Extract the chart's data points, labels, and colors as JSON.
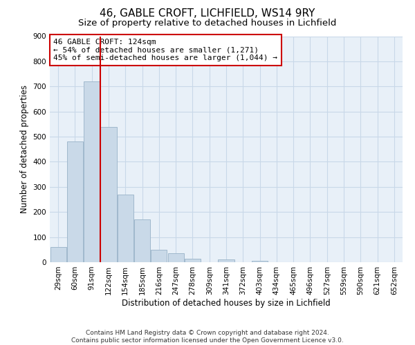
{
  "title": "46, GABLE CROFT, LICHFIELD, WS14 9RY",
  "subtitle": "Size of property relative to detached houses in Lichfield",
  "xlabel": "Distribution of detached houses by size in Lichfield",
  "ylabel": "Number of detached properties",
  "bar_labels": [
    "29sqm",
    "60sqm",
    "91sqm",
    "122sqm",
    "154sqm",
    "185sqm",
    "216sqm",
    "247sqm",
    "278sqm",
    "309sqm",
    "341sqm",
    "372sqm",
    "403sqm",
    "434sqm",
    "465sqm",
    "496sqm",
    "527sqm",
    "559sqm",
    "590sqm",
    "621sqm",
    "652sqm"
  ],
  "bar_values": [
    60,
    480,
    720,
    540,
    270,
    170,
    50,
    35,
    15,
    0,
    10,
    0,
    5,
    0,
    0,
    0,
    0,
    0,
    0,
    0,
    0
  ],
  "bar_color": "#c9d9e8",
  "bar_edge_color": "#a0b8cc",
  "grid_color": "#c8d8e8",
  "background_color": "#e8f0f8",
  "vline_color": "#cc0000",
  "vline_pos": 2.5,
  "annotation_text": "46 GABLE CROFT: 124sqm\n← 54% of detached houses are smaller (1,271)\n45% of semi-detached houses are larger (1,044) →",
  "annotation_box_color": "#ffffff",
  "annotation_box_edge": "#cc0000",
  "ylim": [
    0,
    900
  ],
  "yticks": [
    0,
    100,
    200,
    300,
    400,
    500,
    600,
    700,
    800,
    900
  ],
  "footer_text": "Contains HM Land Registry data © Crown copyright and database right 2024.\nContains public sector information licensed under the Open Government Licence v3.0.",
  "title_fontsize": 11,
  "subtitle_fontsize": 9.5,
  "axis_label_fontsize": 8.5,
  "tick_fontsize": 7.5,
  "annotation_fontsize": 8,
  "footer_fontsize": 6.5
}
